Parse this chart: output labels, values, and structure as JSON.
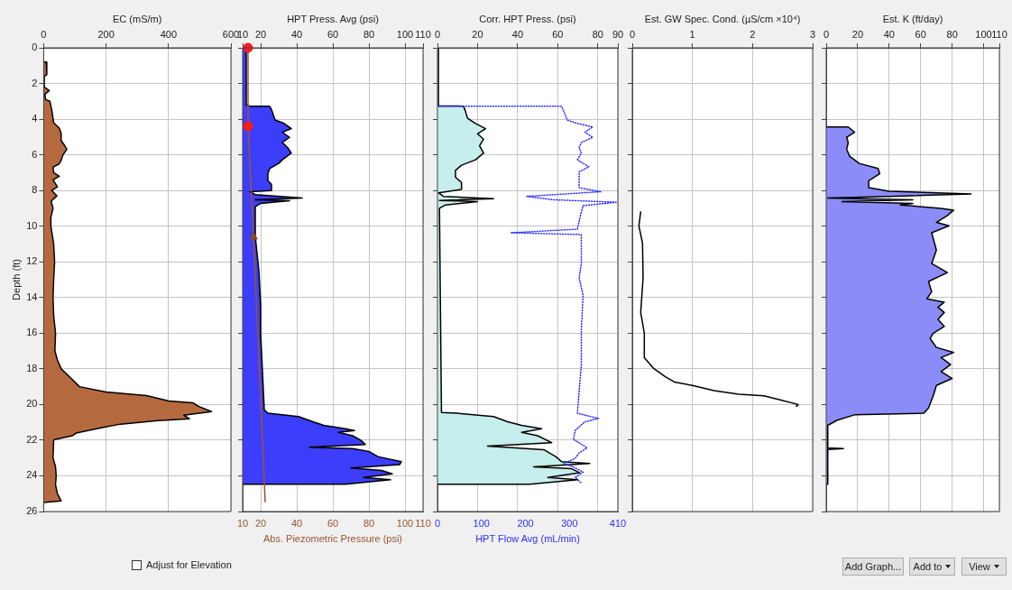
{
  "chart_data": [
    {
      "type": "area",
      "xlabel": "EC (mS/m)",
      "ylabel": "Depth (ft)",
      "xlim": [
        0,
        600
      ],
      "xticks": [
        0,
        200,
        400,
        600
      ],
      "ylim": [
        26,
        0
      ],
      "yticks": [
        0,
        2,
        4,
        6,
        8,
        10,
        12,
        14,
        16,
        18,
        20,
        22,
        24,
        26
      ],
      "grid": true,
      "series": [
        {
          "color": "#b5693f",
          "x": [
            0,
            8,
            10,
            2,
            2,
            18,
            4,
            6,
            20,
            26,
            32,
            50,
            56,
            56,
            68,
            74,
            62,
            56,
            50,
            30,
            32,
            50,
            30,
            44,
            26,
            42,
            24,
            30,
            23,
            23,
            32,
            35,
            32,
            30,
            32,
            38,
            36,
            44,
            56,
            86,
            115,
            199,
            330,
            401,
            478,
            496,
            538,
            449,
            467,
            366,
            246,
            187,
            104,
            92,
            38,
            32,
            30,
            38,
            40,
            38,
            44,
            56,
            0
          ],
          "values": [
            0.8,
            0.8,
            1.5,
            1.6,
            2.2,
            2.4,
            2.6,
            2.9,
            3.0,
            3.5,
            4.2,
            4.5,
            4.8,
            5.2,
            5.5,
            5.7,
            6.0,
            6.3,
            6.5,
            6.7,
            7.0,
            7.2,
            7.4,
            7.8,
            8.0,
            8.3,
            8.6,
            9.0,
            9.5,
            10,
            11,
            12,
            13,
            14,
            15,
            16,
            17,
            17.5,
            18,
            18.5,
            19,
            19.3,
            19.5,
            19.8,
            19.9,
            20.1,
            20.4,
            20.6,
            20.8,
            20.9,
            21.1,
            21.3,
            21.6,
            21.75,
            21.95,
            22,
            23,
            23.5,
            24,
            24.5,
            25,
            25.4,
            25.5
          ]
        }
      ]
    },
    {
      "type": "area",
      "xlabel": "HPT Press. Avg (psi)",
      "x2label": "Abs. Piezometric Pressure (psi)",
      "xlim": [
        10,
        110
      ],
      "xticks": [
        10,
        20,
        40,
        60,
        80,
        100,
        110
      ],
      "x2lim": [
        10,
        110
      ],
      "x2ticks": [
        10,
        20,
        40,
        60,
        80,
        100,
        110
      ],
      "ylim": [
        26,
        0
      ],
      "yticks": [
        0,
        2,
        4,
        6,
        8,
        10,
        12,
        14,
        16,
        18,
        20,
        22,
        24,
        26
      ],
      "tick_labels": "x",
      "grid": true,
      "series": [
        {
          "color": "#3d3dfc",
          "x": [
            10,
            12,
            12,
            14,
            25,
            26,
            27,
            28,
            33,
            37,
            32,
            36,
            32,
            35,
            37,
            32,
            30,
            25,
            24,
            24,
            26,
            26,
            14,
            17,
            43,
            17,
            36,
            20,
            17,
            17,
            17,
            19,
            20,
            20,
            21,
            22,
            24,
            41,
            49,
            55,
            67,
            72,
            63,
            71,
            76,
            78,
            47,
            71,
            80,
            85,
            98,
            97,
            70,
            87,
            93,
            77,
            92,
            67,
            10
          ],
          "values": [
            0,
            0,
            3.2,
            3.27,
            3.28,
            3.46,
            3.75,
            4.05,
            4.24,
            4.53,
            4.73,
            5.02,
            5.31,
            5.6,
            5.9,
            6.28,
            6.48,
            6.77,
            7.06,
            7.45,
            7.65,
            8.0,
            8.07,
            8.23,
            8.42,
            8.52,
            8.58,
            8.72,
            8.91,
            9.4,
            10.56,
            12.5,
            14.46,
            16.0,
            18.15,
            20.3,
            20.49,
            20.68,
            20.97,
            21.17,
            21.36,
            21.46,
            21.56,
            21.75,
            22.04,
            22.24,
            22.39,
            22.47,
            22.63,
            22.92,
            23.21,
            23.37,
            23.56,
            23.7,
            23.89,
            24.09,
            24.22,
            24.47,
            24.47
          ]
        },
        {
          "type": "line",
          "axis": "x2",
          "color": "#9a5530",
          "x": [
            13,
            13,
            16,
            22.5
          ],
          "values": [
            0,
            4.4,
            10.6,
            25.45
          ]
        },
        {
          "type": "scatter",
          "axis": "x2",
          "marker": "circle",
          "color": "#ff1a1a",
          "x": [
            13,
            13
          ],
          "values": [
            0,
            4.4
          ]
        },
        {
          "type": "scatter",
          "axis": "x2",
          "marker": "triangle",
          "color": "#8b4a2a",
          "x": [
            16
          ],
          "values": [
            10.6
          ]
        }
      ]
    },
    {
      "type": "area",
      "xlabel": "Corr. HPT Press. (psi)",
      "x2label": "HPT Flow Avg (mL/min)",
      "xlim": [
        0,
        90
      ],
      "xticks": [
        0,
        20,
        40,
        60,
        80,
        90
      ],
      "x2lim": [
        0,
        410
      ],
      "x2ticks": [
        0,
        100,
        200,
        300,
        410
      ],
      "ylim": [
        26,
        0
      ],
      "yticks": [
        0,
        2,
        4,
        6,
        8,
        10,
        12,
        14,
        16,
        18,
        20,
        22,
        24,
        26
      ],
      "tick_labels": "x",
      "grid": true,
      "series": [
        {
          "color": "#c5eeec",
          "x": [
            0,
            0.5,
            0.5,
            13,
            14,
            15,
            19,
            24,
            20,
            23,
            21,
            23,
            19,
            12,
            9,
            9,
            12,
            12,
            0.5,
            3,
            28,
            1,
            20,
            4,
            1,
            2,
            2,
            10,
            28,
            35,
            42,
            52,
            42,
            50,
            57,
            25,
            53,
            59,
            62,
            76,
            48,
            67,
            71,
            55,
            70,
            46,
            0
          ],
          "values": [
            0,
            0,
            3.26,
            3.27,
            3.56,
            3.95,
            4.24,
            4.53,
            4.82,
            5.12,
            5.5,
            5.9,
            6.28,
            6.58,
            6.87,
            7.26,
            7.55,
            7.94,
            8.13,
            8.33,
            8.46,
            8.56,
            8.62,
            8.81,
            9.0,
            20.4,
            20.45,
            20.49,
            20.68,
            20.97,
            21.17,
            21.36,
            21.56,
            21.75,
            22.14,
            22.33,
            22.53,
            22.92,
            23.21,
            23.31,
            23.5,
            23.6,
            23.83,
            24.09,
            24.22,
            24.47,
            24.47
          ]
        },
        {
          "type": "line",
          "axis": "x2",
          "line_style": "dotted",
          "color": "#2f2fff",
          "x": [
            3,
            282,
            287,
            295,
            318,
            353,
            335,
            353,
            327,
            322,
            327,
            318,
            344,
            322,
            322,
            371,
            202,
            264,
            406,
            331,
            327,
            318,
            167,
            327,
            327,
            322,
            331,
            327,
            327,
            318,
            366,
            335,
            313,
            309,
            340,
            322,
            313,
            287,
            309,
            331,
            313,
            327
          ],
          "values": [
            3.27,
            3.28,
            3.56,
            4.05,
            4.24,
            4.44,
            4.73,
            5.02,
            5.31,
            5.6,
            5.9,
            6.28,
            6.67,
            6.96,
            7.84,
            8.07,
            8.33,
            8.52,
            8.66,
            8.85,
            9.2,
            10.17,
            10.37,
            10.47,
            12.1,
            12.9,
            13.87,
            15.8,
            17.76,
            20.49,
            20.78,
            20.97,
            21.46,
            21.95,
            22.43,
            22.72,
            23.02,
            23.31,
            23.5,
            23.79,
            24.09,
            24.4
          ]
        }
      ]
    },
    {
      "type": "line",
      "xlabel": "Est. GW Spec. Cond. (µS/cm ×10⁴)",
      "xlim": [
        0,
        3
      ],
      "xticks": [
        0,
        1,
        2,
        3
      ],
      "ylim": [
        26,
        0
      ],
      "yticks": [
        0,
        2,
        4,
        6,
        8,
        10,
        12,
        14,
        16,
        18,
        20,
        22,
        24,
        26
      ],
      "tick_labels": "x",
      "grid": true,
      "series": [
        {
          "color": "#000000",
          "x": [
            0.14,
            0.11,
            0.17,
            0.18,
            0.14,
            0.2,
            0.2,
            0.35,
            0.55,
            0.7,
            1.0,
            1.36,
            1.77,
            2.19,
            2.43,
            2.76,
            2.73
          ],
          "values": [
            9.2,
            9.98,
            10.95,
            12.9,
            14.84,
            16.0,
            17.37,
            17.96,
            18.44,
            18.74,
            18.93,
            19.22,
            19.42,
            19.51,
            19.71,
            20.0,
            20.1
          ]
        }
      ]
    },
    {
      "type": "area",
      "xlabel": "Est. K (ft/day)",
      "xlim": [
        0,
        110
      ],
      "xticks": [
        0,
        20,
        40,
        60,
        80,
        100,
        110
      ],
      "ylim": [
        26,
        0
      ],
      "yticks": [
        0,
        2,
        4,
        6,
        8,
        10,
        12,
        14,
        16,
        18,
        20,
        22,
        24,
        26
      ],
      "tick_labels": "x",
      "grid": true,
      "series": [
        {
          "color": "#8c8cf8",
          "x": [
            0,
            14,
            18,
            13,
            14,
            13,
            15,
            21,
            33,
            34,
            27,
            27,
            40,
            92,
            40,
            1,
            55,
            10,
            55,
            47,
            73,
            81,
            77,
            70,
            78,
            67,
            70,
            67,
            77,
            65,
            67,
            64,
            75,
            71,
            75,
            71,
            75,
            68,
            66,
            70,
            81,
            73,
            79,
            73,
            80,
            70,
            68,
            65,
            62,
            18,
            7,
            1,
            1,
            11,
            1,
            1,
            0
          ],
          "values": [
            4.44,
            4.44,
            4.73,
            5.02,
            5.31,
            5.7,
            6.09,
            6.48,
            6.77,
            7.06,
            7.45,
            7.84,
            8.04,
            8.19,
            8.33,
            8.42,
            8.52,
            8.62,
            8.72,
            8.81,
            9.0,
            9.1,
            9.4,
            9.79,
            9.98,
            10.37,
            11.34,
            12.1,
            12.6,
            13.1,
            13.68,
            14.07,
            14.26,
            14.55,
            14.84,
            15.23,
            15.62,
            16.0,
            16.3,
            16.8,
            17.08,
            17.37,
            17.76,
            18.15,
            18.54,
            18.93,
            19.51,
            20.2,
            20.49,
            20.58,
            20.88,
            21.17,
            22.43,
            22.47,
            22.52,
            24.47,
            24.47
          ]
        }
      ]
    },
    {
      "type": "other",
      "annotations": [
        "Adjust for Elevation",
        "Add Graph...",
        "Add to",
        "View"
      ]
    }
  ]
}
